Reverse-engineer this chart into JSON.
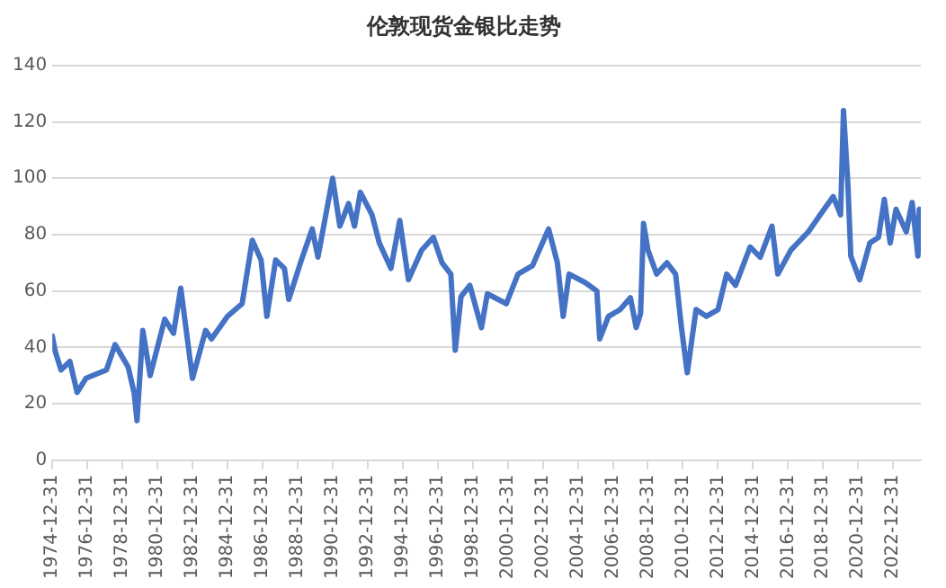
{
  "chart_data": {
    "type": "line",
    "title": "伦敦现货金银比走势",
    "x": [
      "1975-01",
      "1975-03",
      "1975-07",
      "1976-01",
      "1976-06",
      "1976-12",
      "1978-02",
      "1978-08",
      "1979-05",
      "1979-09",
      "1979-11",
      "1980-03",
      "1980-08",
      "1981-06",
      "1981-12",
      "1982-05",
      "1982-08",
      "1983-01",
      "1983-10",
      "1984-02",
      "1985-01",
      "1985-11",
      "1986-06",
      "1986-12",
      "1987-04",
      "1987-10",
      "1988-04",
      "1988-07",
      "1989-03",
      "1989-11",
      "1990-03",
      "1991-01",
      "1991-06",
      "1991-12",
      "1992-04",
      "1992-08",
      "1993-04",
      "1993-09",
      "1994-05",
      "1994-11",
      "1995-05",
      "1996-02",
      "1996-10",
      "1997-04",
      "1997-10",
      "1998-01",
      "1998-05",
      "1998-11",
      "1999-07",
      "1999-11",
      "2000-12",
      "2001-08",
      "2002-06",
      "2003-05",
      "2003-11",
      "2004-03",
      "2004-07",
      "2005-06",
      "2006-02",
      "2006-04",
      "2006-10",
      "2007-06",
      "2008-01",
      "2008-05",
      "2008-08",
      "2008-10",
      "2009-01",
      "2009-07",
      "2010-02",
      "2010-08",
      "2010-12",
      "2011-04",
      "2011-10",
      "2012-05",
      "2013-01",
      "2013-07",
      "2014-01",
      "2014-11",
      "2015-06",
      "2016-02",
      "2016-06",
      "2017-03",
      "2018-03",
      "2018-11",
      "2019-08",
      "2020-01",
      "2020-03",
      "2020-06",
      "2020-08",
      "2021-02",
      "2021-09",
      "2022-03",
      "2022-07",
      "2022-11",
      "2023-03",
      "2023-10",
      "2024-02",
      "2024-06",
      "2024-07"
    ],
    "series": [
      {
        "color": "#4472c4",
        "values": [
          44,
          38.6,
          32,
          35,
          24,
          29,
          32,
          41,
          33,
          24,
          14,
          46,
          30,
          50,
          45,
          61,
          49,
          29,
          46,
          43,
          51,
          55.5,
          78,
          71,
          51,
          71,
          68,
          57,
          70,
          82,
          72,
          100,
          83,
          91,
          83,
          95,
          87,
          77,
          68,
          85,
          64,
          74.5,
          79,
          70,
          66,
          39,
          58,
          62,
          47,
          59,
          55.5,
          66,
          69,
          82,
          70,
          51,
          66,
          63,
          60,
          43,
          51,
          53.4,
          57.6,
          47,
          52,
          84,
          74.5,
          66,
          70,
          66,
          47,
          31,
          53.4,
          51,
          53.4,
          66,
          62,
          75.6,
          72,
          83,
          66,
          74.5,
          81,
          87,
          93.5,
          87,
          124,
          98,
          72.4,
          64,
          77,
          79,
          92.5,
          77,
          89,
          81,
          91.4,
          72.4,
          89
        ]
      }
    ],
    "xlim": [
      "1974-12-31",
      "2024-07-31"
    ],
    "xticks": [
      "1974-12-31",
      "1976-12-31",
      "1978-12-31",
      "1980-12-31",
      "1982-12-31",
      "1984-12-31",
      "1986-12-31",
      "1988-12-31",
      "1990-12-31",
      "1992-12-31",
      "1994-12-31",
      "1996-12-31",
      "1998-12-31",
      "2000-12-31",
      "2002-12-31",
      "2004-12-31",
      "2006-12-31",
      "2008-12-31",
      "2010-12-31",
      "2012-12-31",
      "2014-12-31",
      "2016-12-31",
      "2018-12-31",
      "2020-12-31",
      "2022-12-31"
    ],
    "ylim": [
      0,
      140
    ],
    "yticks": [
      0,
      20,
      40,
      60,
      80,
      100,
      120,
      140
    ],
    "grid": "y",
    "legend": false,
    "marker": "none",
    "line_style": "solid"
  }
}
